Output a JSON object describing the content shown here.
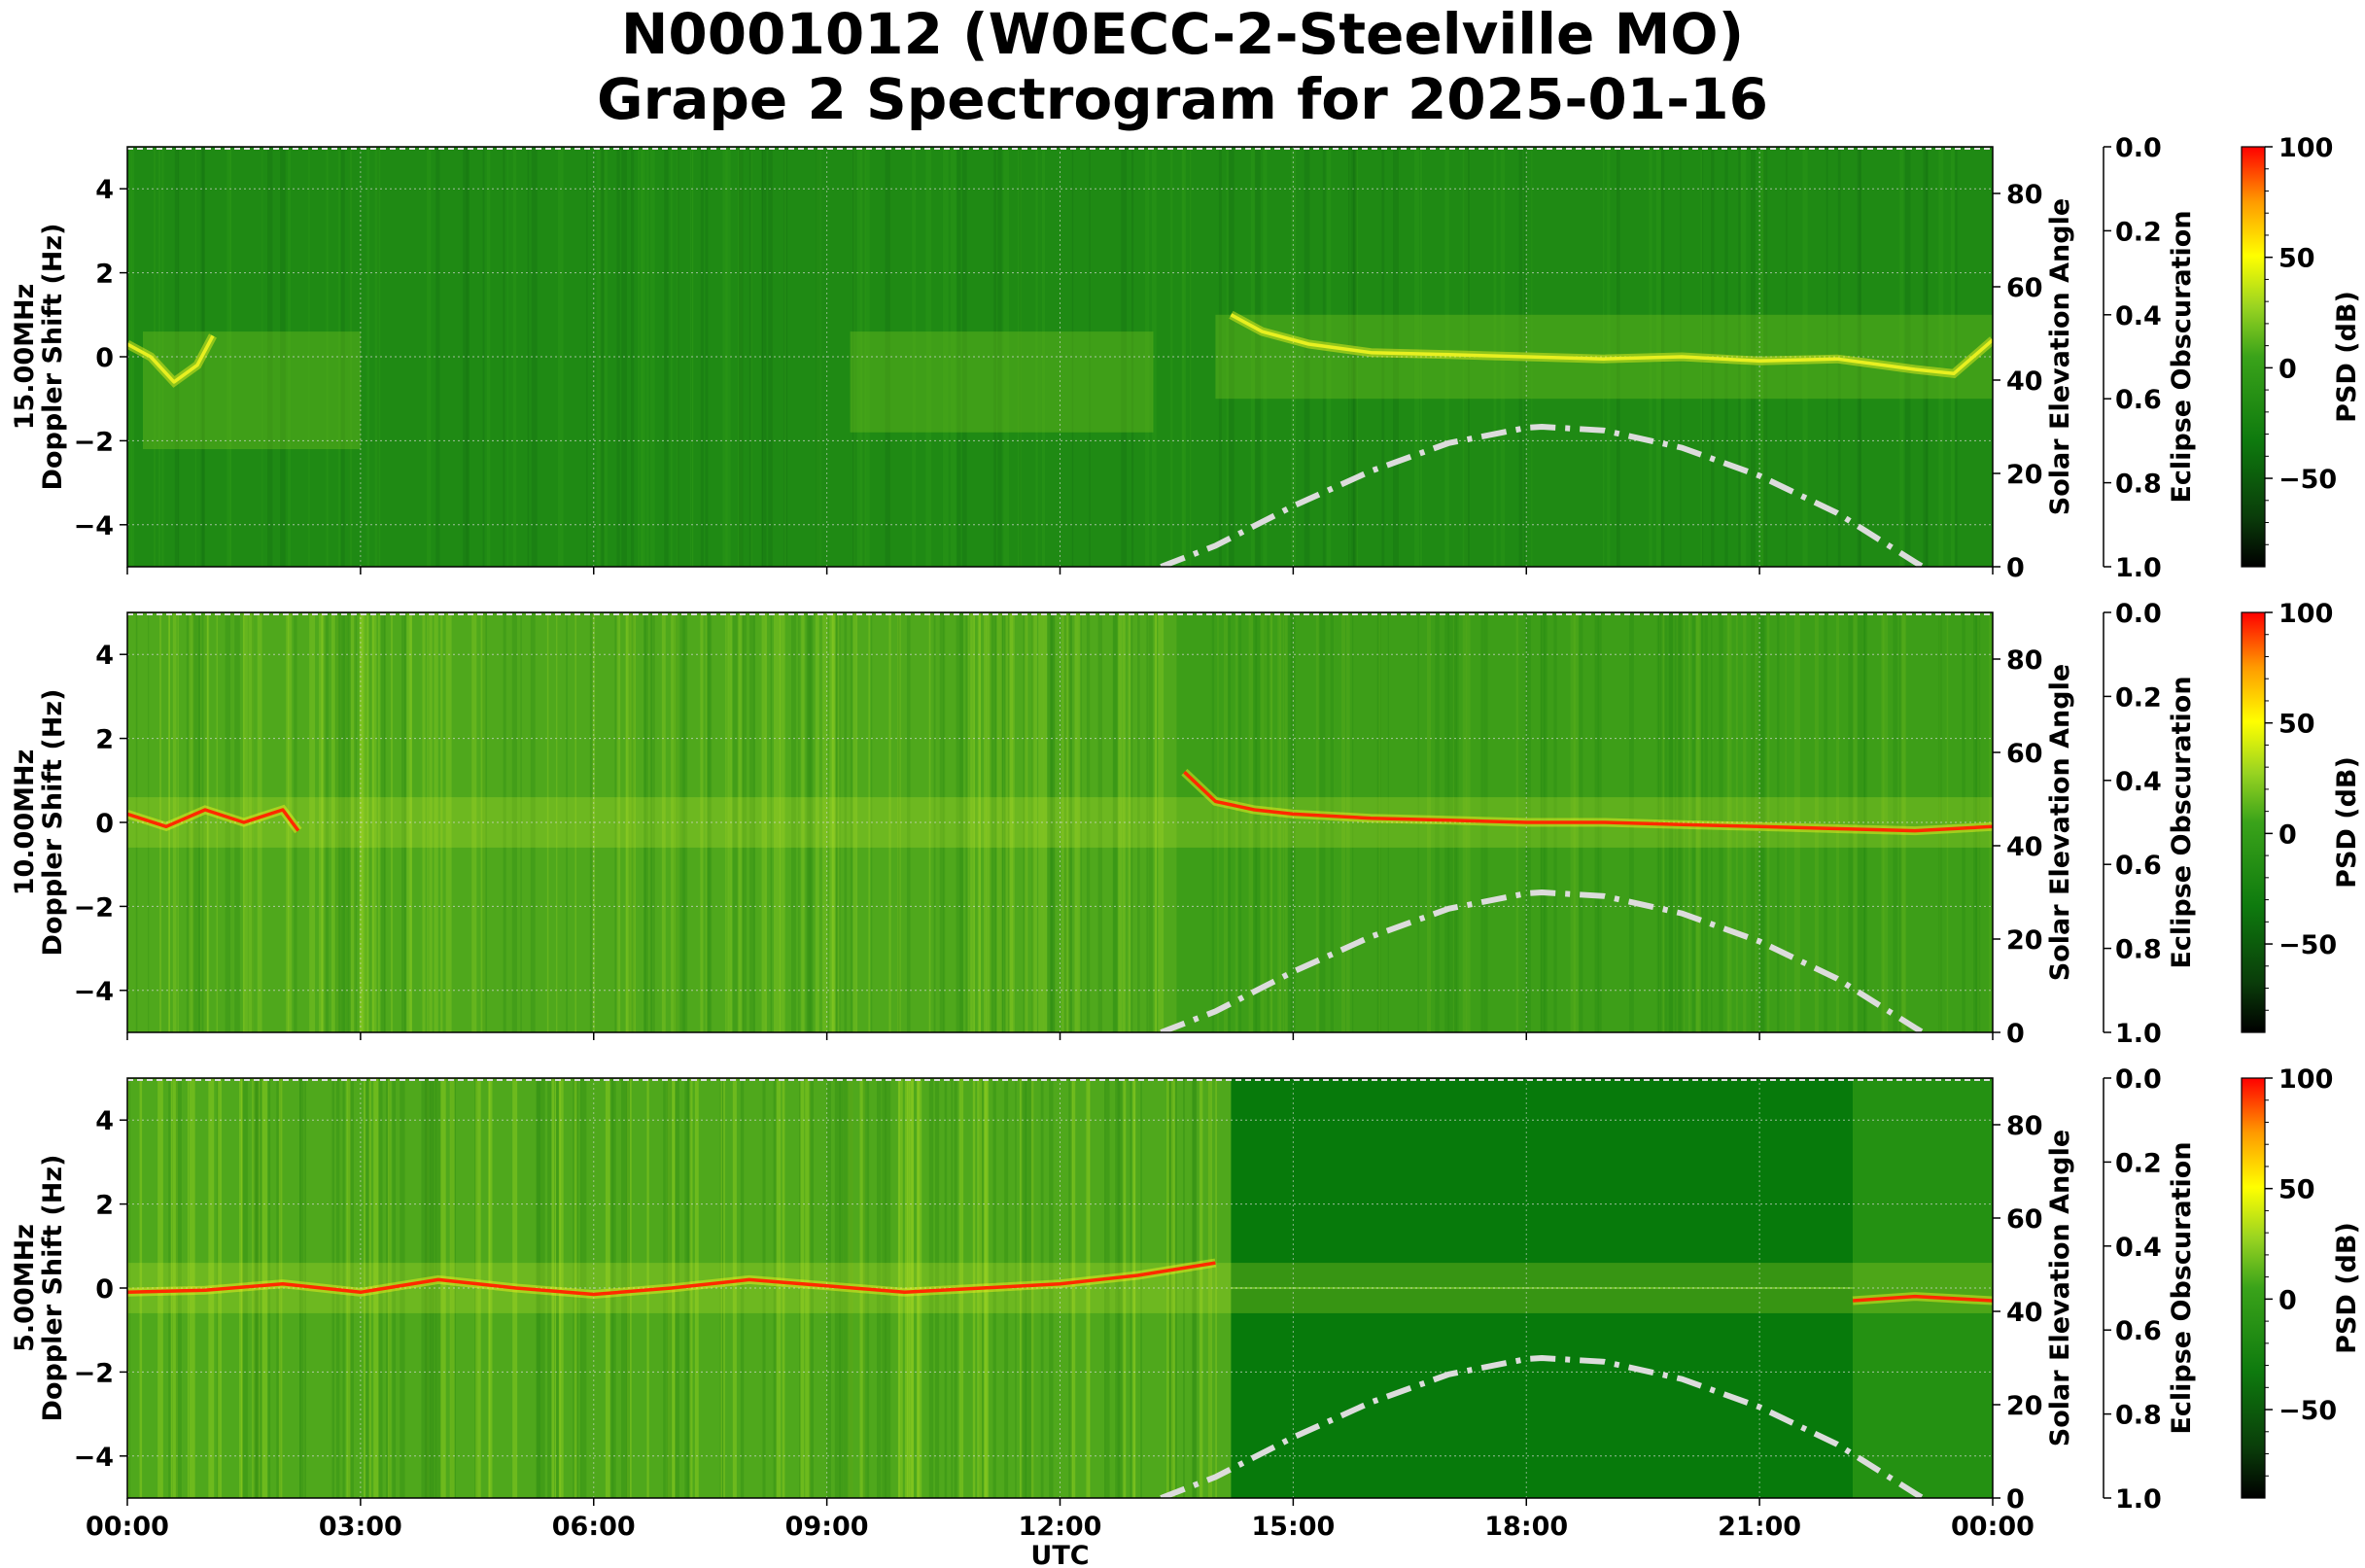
{
  "figure": {
    "title_line1": "N0001012 (W0ECC-2-Steelville MO)",
    "title_line2": "Grape 2 Spectrogram for 2025-01-16"
  },
  "colors": {
    "colormap": [
      "#000000",
      "#0a3d0a",
      "#0e7a0e",
      "#3aa31a",
      "#9ad421",
      "#ffff00",
      "#ff9a00",
      "#ff0000"
    ],
    "solar_curve": "#dcdcdc",
    "carrier_yellow": "#e8f020",
    "carrier_red": "#ff2a00"
  },
  "chart_data": [
    {
      "type": "heatmap",
      "panel": "15.00MHz",
      "ylabel": "15.00MHz\nDoppler Shift (Hz)",
      "xlabel": "",
      "right_ylabel": "Solar Elevation Angle",
      "eclipse_label": "Eclipse Obscuration",
      "colorbar_label": "PSD (dB)",
      "xlim": [
        "00:00",
        "24:00"
      ],
      "ylim": [
        -5,
        5
      ],
      "yticks": [
        4,
        2,
        0,
        -2,
        -4
      ],
      "solar_ylim": [
        0,
        90
      ],
      "solar_yticks": [
        80,
        60,
        40,
        20,
        0
      ],
      "eclipse_ylim": [
        0.0,
        1.0
      ],
      "eclipse_yticks": [
        "0.0",
        "0.2",
        "0.4",
        "0.6",
        "0.8",
        "1.0"
      ],
      "colorbar_range": [
        -90,
        100
      ],
      "colorbar_ticks": [
        "100",
        "50",
        "0",
        "−50"
      ],
      "xtick_labels": [],
      "solar_elevation": {
        "hours": [
          13.3,
          14,
          15,
          16,
          17,
          18,
          18.2,
          19,
          20,
          21,
          22,
          23,
          23.1
        ],
        "deg": [
          0,
          4.5,
          13,
          20.5,
          26.5,
          29.8,
          30,
          29.2,
          25.5,
          19.5,
          11.5,
          1,
          0
        ]
      },
      "carrier_color": "yellow",
      "carrier_segments": [
        {
          "hours": [
            0,
            0.3,
            0.6,
            0.9,
            1.1
          ],
          "doppler": [
            0.3,
            0,
            -0.6,
            -0.2,
            0.5
          ]
        },
        {
          "hours": [
            14.2,
            14.6,
            15.2,
            16,
            17,
            18,
            19,
            20,
            21,
            22,
            23,
            23.5,
            24
          ],
          "doppler": [
            1.0,
            0.6,
            0.3,
            0.1,
            0.05,
            0.0,
            -0.05,
            0.0,
            -0.1,
            -0.05,
            -0.3,
            -0.4,
            0.4
          ]
        }
      ],
      "background": "green, diffuse yellow-green bands around 0 Hz at 00:00–03:00, 09:00–13:00 and 14:00–24:00"
    },
    {
      "type": "heatmap",
      "panel": "10.00MHz",
      "ylabel": "10.00MHz\nDoppler Shift (Hz)",
      "xlabel": "",
      "right_ylabel": "Solar Elevation Angle",
      "eclipse_label": "Eclipse Obscuration",
      "colorbar_label": "PSD (dB)",
      "xlim": [
        "00:00",
        "24:00"
      ],
      "ylim": [
        -5,
        5
      ],
      "yticks": [
        4,
        2,
        0,
        -2,
        -4
      ],
      "solar_ylim": [
        0,
        90
      ],
      "solar_yticks": [
        80,
        60,
        40,
        20,
        0
      ],
      "eclipse_ylim": [
        0.0,
        1.0
      ],
      "eclipse_yticks": [
        "0.0",
        "0.2",
        "0.4",
        "0.6",
        "0.8",
        "1.0"
      ],
      "colorbar_range": [
        -90,
        100
      ],
      "colorbar_ticks": [
        "100",
        "50",
        "0",
        "−50"
      ],
      "xtick_labels": [],
      "solar_elevation": {
        "hours": [
          13.3,
          14,
          15,
          16,
          17,
          18,
          18.2,
          19,
          20,
          21,
          22,
          23,
          23.1
        ],
        "deg": [
          0,
          4.5,
          13,
          20.5,
          26.5,
          29.8,
          30,
          29.2,
          25.5,
          19.5,
          11.5,
          1,
          0
        ]
      },
      "carrier_color": "red",
      "carrier_segments": [
        {
          "hours": [
            0,
            0.5,
            1.0,
            1.5,
            2.0,
            2.2
          ],
          "doppler": [
            0.2,
            -0.1,
            0.3,
            0.0,
            0.3,
            -0.2
          ]
        },
        {
          "hours": [
            13.6,
            14,
            14.5,
            15,
            16,
            17,
            18,
            19,
            20,
            21,
            22,
            23,
            24
          ],
          "doppler": [
            1.2,
            0.5,
            0.3,
            0.2,
            0.1,
            0.05,
            0.0,
            0.0,
            -0.05,
            -0.1,
            -0.15,
            -0.2,
            -0.1
          ]
        }
      ],
      "background": "yellow-green noise over full band 00:00–13:30 with a faint broad ridge near 0 Hz; green with bright carrier after 13:30"
    },
    {
      "type": "heatmap",
      "panel": "5.00MHz",
      "ylabel": "5.00MHz\nDoppler Shift (Hz)",
      "xlabel": "UTC",
      "right_ylabel": "Solar Elevation Angle",
      "eclipse_label": "Eclipse Obscuration",
      "colorbar_label": "PSD (dB)",
      "xlim": [
        "00:00",
        "24:00"
      ],
      "ylim": [
        -5,
        5
      ],
      "yticks": [
        4,
        2,
        0,
        -2,
        -4
      ],
      "solar_ylim": [
        0,
        90
      ],
      "solar_yticks": [
        80,
        60,
        40,
        20,
        0
      ],
      "eclipse_ylim": [
        0.0,
        1.0
      ],
      "eclipse_yticks": [
        "0.0",
        "0.2",
        "0.4",
        "0.6",
        "0.8",
        "1.0"
      ],
      "colorbar_range": [
        -90,
        100
      ],
      "colorbar_ticks": [
        "100",
        "50",
        "0",
        "−50"
      ],
      "xtick_labels": [
        "00:00",
        "03:00",
        "06:00",
        "09:00",
        "12:00",
        "15:00",
        "18:00",
        "21:00",
        "00:00"
      ],
      "solar_elevation": {
        "hours": [
          13.3,
          14,
          15,
          16,
          17,
          18,
          18.2,
          19,
          20,
          21,
          22,
          23,
          23.1
        ],
        "deg": [
          0,
          4.5,
          13,
          20.5,
          26.5,
          29.8,
          30,
          29.2,
          25.5,
          19.5,
          11.5,
          1,
          0
        ]
      },
      "carrier_color": "red",
      "carrier_segments": [
        {
          "hours": [
            0,
            1,
            2,
            3,
            4,
            5,
            6,
            7,
            8,
            9,
            10,
            11,
            12,
            13,
            14
          ],
          "doppler": [
            -0.1,
            -0.05,
            0.1,
            -0.1,
            0.2,
            0.0,
            -0.15,
            0.0,
            0.2,
            0.05,
            -0.1,
            0.0,
            0.1,
            0.3,
            0.6
          ]
        },
        {
          "hours": [
            22.2,
            23,
            24
          ],
          "doppler": [
            -0.3,
            -0.2,
            -0.3
          ]
        }
      ],
      "background": "yellow-green noise over full band 00:00–14:00; dark green 14:00–22:00 with faint line at 0 Hz"
    }
  ]
}
